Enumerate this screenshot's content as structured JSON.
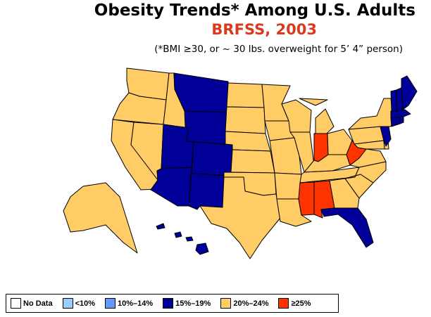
{
  "header": {
    "title": "Obesity Trends*  Among U.S. Adults",
    "subtitle": "BRFSS, 2003",
    "footnote": "(*BMI ≥30, or ~ 30 lbs. overweight for 5’ 4” person)"
  },
  "colors": {
    "no_data": "#ffffff",
    "lt10": "#99ccff",
    "10_14": "#6699ff",
    "15_19": "#000099",
    "20_24": "#ffcc66",
    "ge25": "#ff3300",
    "border": "#000000",
    "title_accent": "#d93a1e"
  },
  "legend": [
    {
      "key": "no_data",
      "label": "No Data"
    },
    {
      "key": "lt10",
      "label": "<10%"
    },
    {
      "key": "10_14",
      "label": "10%–14%"
    },
    {
      "key": "15_19",
      "label": "15%–19%"
    },
    {
      "key": "20_24",
      "label": "20%–24%"
    },
    {
      "key": "ge25",
      "label": "≥25%"
    }
  ],
  "states": {
    "WA": "20_24",
    "OR": "20_24",
    "CA": "20_24",
    "NV": "20_24",
    "ID": "20_24",
    "MT": "15_19",
    "WY": "15_19",
    "UT": "15_19",
    "AZ": "15_19",
    "CO": "15_19",
    "NM": "15_19",
    "ND": "20_24",
    "SD": "20_24",
    "NE": "20_24",
    "KS": "20_24",
    "OK": "20_24",
    "TX": "20_24",
    "MN": "20_24",
    "IA": "20_24",
    "MO": "20_24",
    "AR": "20_24",
    "LA": "20_24",
    "WI": "20_24",
    "IL": "20_24",
    "MI": "20_24",
    "IN": "ge25",
    "OH": "20_24",
    "KY": "20_24",
    "TN": "20_24",
    "MS": "ge25",
    "AL": "ge25",
    "GA": "20_24",
    "FL": "15_19",
    "SC": "20_24",
    "NC": "20_24",
    "VA": "20_24",
    "WV": "ge25",
    "PA": "20_24",
    "NY": "20_24",
    "MD": "20_24",
    "DE": "20_24",
    "NJ": "15_19",
    "CT": "15_19",
    "RI": "15_19",
    "MA": "15_19",
    "VT": "15_19",
    "NH": "15_19",
    "ME": "15_19",
    "AK": "20_24",
    "HI": "15_19"
  }
}
